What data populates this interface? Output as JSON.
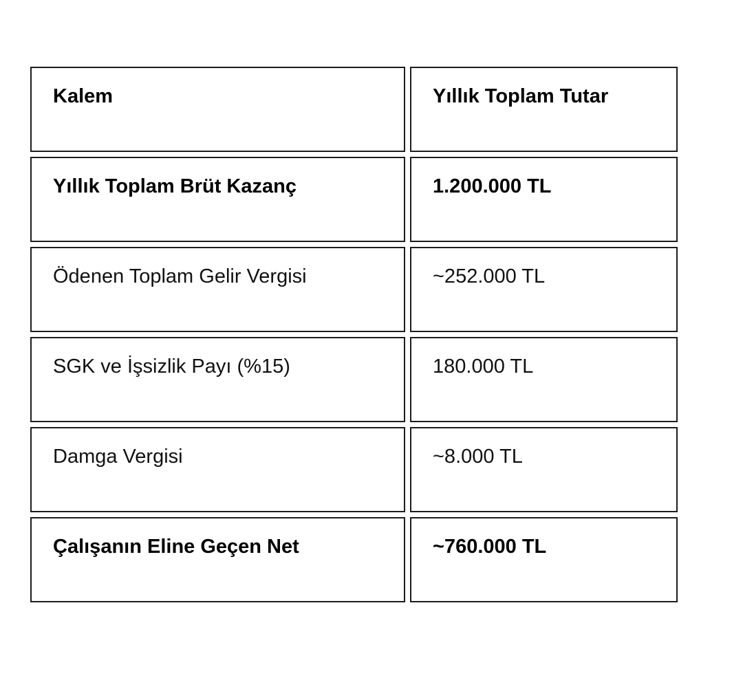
{
  "table": {
    "columns": [
      {
        "label": "Kalem"
      },
      {
        "label": "Yıllık Toplam Tutar"
      }
    ],
    "rows": [
      {
        "item": "Yıllık Toplam Brüt Kazanç",
        "amount": "1.200.000 TL",
        "emphasis": "bold"
      },
      {
        "item": "Ödenen Toplam Gelir Vergisi",
        "amount": "~252.000 TL",
        "emphasis": "normal"
      },
      {
        "item": "SGK ve İşsizlik Payı (%15)",
        "amount": "180.000 TL",
        "emphasis": "normal"
      },
      {
        "item": "Damga Vergisi",
        "amount": "~8.000 TL",
        "emphasis": "normal"
      },
      {
        "item": "Çalışanın Eline Geçen Net",
        "amount": "~760.000 TL",
        "emphasis": "bold"
      }
    ],
    "colors": {
      "border": "#1c1c1c",
      "text": "#111111",
      "background": "#ffffff"
    }
  }
}
